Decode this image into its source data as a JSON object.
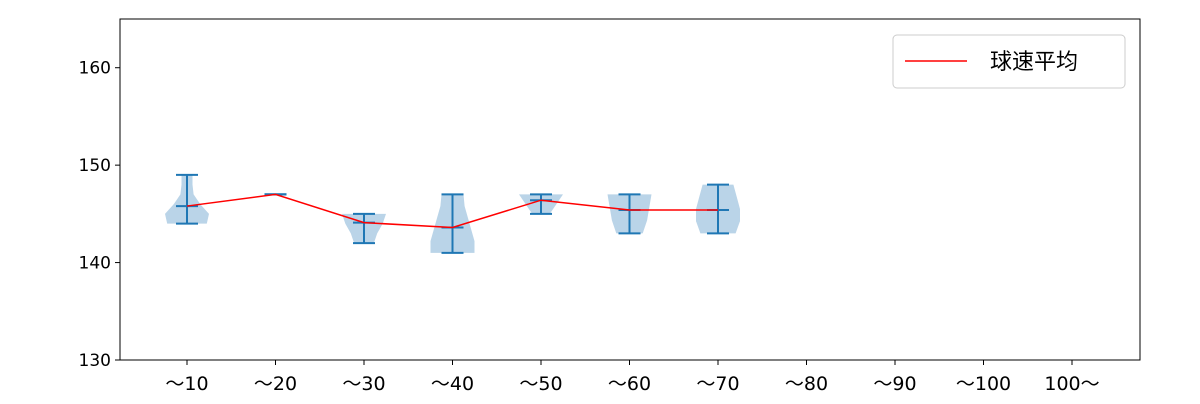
{
  "chart_data": {
    "type": "violin",
    "categories": [
      "～10",
      "～20",
      "～30",
      "～40",
      "～50",
      "～60",
      "～70",
      "～80",
      "～90",
      "～100",
      "100～"
    ],
    "ylim": [
      130,
      165
    ],
    "yticks": [
      130,
      140,
      150,
      160
    ],
    "violins": [
      {
        "min": 144,
        "max": 149,
        "mean": 145.8,
        "profile": [
          0.9,
          1,
          0.6,
          0.3,
          0.25,
          0.25
        ]
      },
      {
        "min": 147,
        "max": 147,
        "mean": 147,
        "profile": []
      },
      {
        "min": 142,
        "max": 145,
        "mean": 144.1,
        "profile": [
          0.45,
          0.6,
          0.85,
          1
        ]
      },
      {
        "min": 141,
        "max": 147,
        "mean": 143.6,
        "profile": [
          1,
          1,
          0.85,
          0.7,
          0.55,
          0.5
        ]
      },
      {
        "min": 145,
        "max": 147,
        "mean": 146.4,
        "profile": [
          0.4,
          0.7,
          1
        ]
      },
      {
        "min": 143,
        "max": 147,
        "mean": 145.4,
        "profile": [
          0.6,
          0.8,
          0.9,
          1
        ]
      },
      {
        "min": 143,
        "max": 148,
        "mean": 145.4,
        "profile": [
          0.8,
          1,
          1,
          0.85,
          0.7
        ]
      },
      null,
      null,
      null,
      null
    ],
    "series": [
      {
        "name": "球速平均",
        "color": "#ff0000",
        "values": [
          145.8,
          147,
          144.1,
          143.6,
          146.4,
          145.4,
          145.4
        ]
      }
    ],
    "violin_color": "#1f77b4",
    "violin_fill": "#bad4e8",
    "legend": {
      "placement": "top-right",
      "label": "球速平均"
    },
    "grid": false
  }
}
